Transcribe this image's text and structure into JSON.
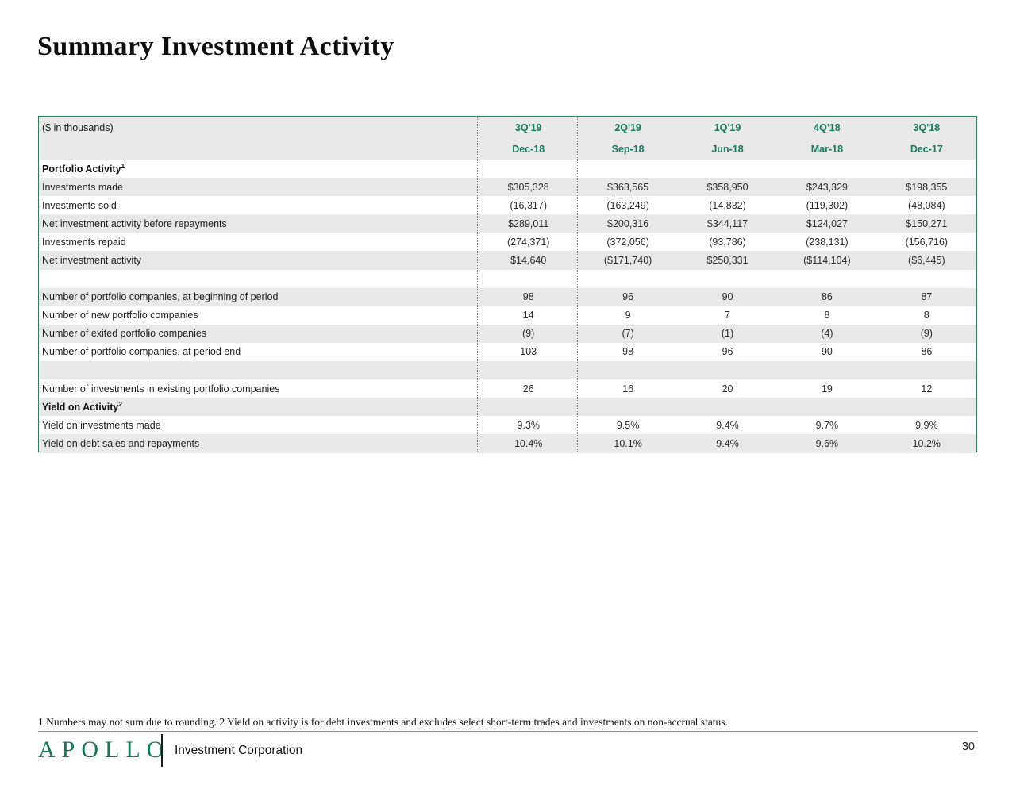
{
  "page": {
    "title": "Summary Investment Activity",
    "footnote": "1 Numbers may not sum due to rounding. 2 Yield on activity is for debt investments and excludes select short-term trades and investments on non-accrual status.",
    "page_number": "30"
  },
  "footer": {
    "logo_text": "APOLLO",
    "logo_subtitle": "Investment Corporation"
  },
  "colors": {
    "brand_green": "#17795C",
    "table_border_green": "#27835F",
    "dotted_divider_green": "#4D9E7E",
    "row_shade_gray": "#E9E9E9"
  },
  "table": {
    "unit_label": "($ in thousands)",
    "quarters": [
      "3Q'19",
      "2Q'19",
      "1Q'19",
      "4Q'18",
      "3Q'18"
    ],
    "dates": [
      "Dec-18",
      "Sep-18",
      "Jun-18",
      "Mar-18",
      "Dec-17"
    ],
    "rows": [
      {
        "label": "Portfolio Activity",
        "sup": "1",
        "bold": true,
        "shade": false,
        "values": [
          "",
          "",
          "",
          "",
          ""
        ]
      },
      {
        "label": "Investments made",
        "shade": true,
        "values": [
          "$305,328",
          "$363,565",
          "$358,950",
          "$243,329",
          "$198,355"
        ]
      },
      {
        "label": "Investments sold",
        "shade": false,
        "values": [
          "(16,317)",
          "(163,249)",
          "(14,832)",
          "(119,302)",
          "(48,084)"
        ]
      },
      {
        "label": "Net investment activity before repayments",
        "shade": true,
        "values": [
          "$289,011",
          "$200,316",
          "$344,117",
          "$124,027",
          "$150,271"
        ]
      },
      {
        "label": "Investments repaid",
        "shade": false,
        "values": [
          "(274,371)",
          "(372,056)",
          "(93,786)",
          "(238,131)",
          "(156,716)"
        ]
      },
      {
        "label": "Net investment activity",
        "shade": true,
        "values": [
          "$14,640",
          "($171,740)",
          "$250,331",
          "($114,104)",
          "($6,445)"
        ]
      },
      {
        "label": "",
        "blank": true,
        "shade": false,
        "values": [
          "",
          "",
          "",
          "",
          ""
        ]
      },
      {
        "label": "Number of portfolio companies, at beginning of period",
        "shade": true,
        "values": [
          "98",
          "96",
          "90",
          "86",
          "87"
        ]
      },
      {
        "label": "Number of new portfolio companies",
        "shade": false,
        "values": [
          "14",
          "9",
          "7",
          "8",
          "8"
        ]
      },
      {
        "label": "Number of exited portfolio companies",
        "shade": true,
        "values": [
          "(9)",
          "(7)",
          "(1)",
          "(4)",
          "(9)"
        ]
      },
      {
        "label": "Number of portfolio companies, at period end",
        "shade": false,
        "values": [
          "103",
          "98",
          "96",
          "90",
          "86"
        ]
      },
      {
        "label": "",
        "blank": true,
        "shade": true,
        "values": [
          "",
          "",
          "",
          "",
          ""
        ]
      },
      {
        "label": "Number of investments in existing portfolio companies",
        "shade": false,
        "values": [
          "26",
          "16",
          "20",
          "19",
          "12"
        ]
      },
      {
        "label": "Yield on Activity",
        "sup": "2",
        "bold": true,
        "shade": true,
        "values": [
          "",
          "",
          "",
          "",
          ""
        ]
      },
      {
        "label": "Yield on investments made",
        "shade": false,
        "values": [
          "9.3%",
          "9.5%",
          "9.4%",
          "9.7%",
          "9.9%"
        ]
      },
      {
        "label": "Yield on debt sales and repayments",
        "shade": true,
        "values": [
          "10.4%",
          "10.1%",
          "9.4%",
          "9.6%",
          "10.2%"
        ]
      }
    ]
  }
}
